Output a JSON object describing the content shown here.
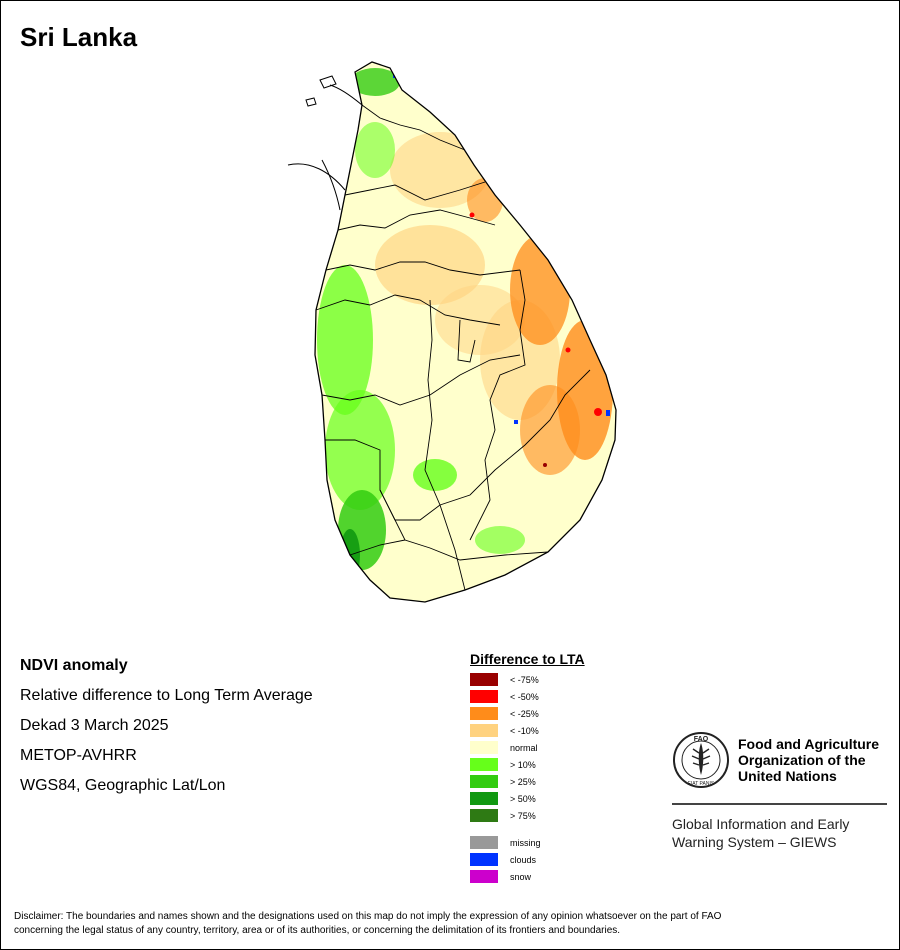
{
  "title": "Sri Lanka",
  "info": {
    "product": "NDVI anomaly",
    "description": "Relative difference to Long Term Average",
    "period": "Dekad 3 March 2025",
    "sensor": "METOP-AVHRR",
    "projection": "WGS84, Geographic Lat/Lon"
  },
  "legend": {
    "title": "Difference to LTA",
    "items": [
      {
        "label": "< -75%",
        "color": "#990000"
      },
      {
        "label": "< -50%",
        "color": "#ff0000"
      },
      {
        "label": "< -25%",
        "color": "#ff8c1a"
      },
      {
        "label": "< -10%",
        "color": "#ffd27f"
      },
      {
        "label": "normal",
        "color": "#ffffcc"
      },
      {
        "label": "> 10%",
        "color": "#66ff1a"
      },
      {
        "label": "> 25%",
        "color": "#33cc11"
      },
      {
        "label": "> 50%",
        "color": "#119911"
      },
      {
        "label": "> 75%",
        "color": "#2e7a14"
      }
    ],
    "extra_items": [
      {
        "label": "missing",
        "color": "#999999"
      },
      {
        "label": "clouds",
        "color": "#0033ff"
      },
      {
        "label": "snow",
        "color": "#cc00cc"
      }
    ]
  },
  "fao": {
    "logo_text": "FAO",
    "logo_motto": "FIAT PANIS",
    "name_lines": [
      "Food and Agriculture",
      "Organization of the",
      "United Nations"
    ],
    "giews_lines": [
      "Global Information and Early",
      "Warning System – GIEWS"
    ]
  },
  "disclaimer_lines": [
    "Disclaimer: The boundaries and names shown and the designations used on this map do not imply the expression of any opinion whatsoever on the part of FAO",
    "concerning the legal status of any country, territory, area or of its authorities, or concerning the delimitation of its frontiers and boundaries."
  ]
}
